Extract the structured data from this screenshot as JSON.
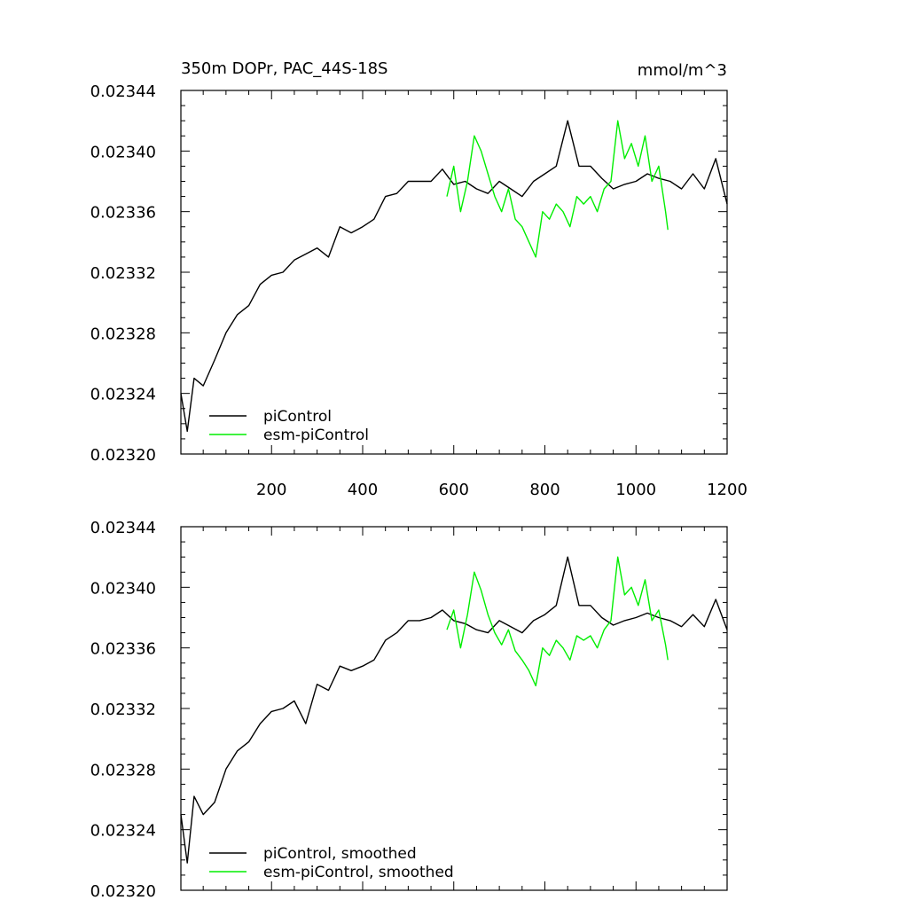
{
  "header": {
    "title": "350m DOPr, PAC_44S-18S",
    "units": "mmol/m^3"
  },
  "colors": {
    "piControl": "#000000",
    "esm_piControl": "#00ee00"
  },
  "chart_data": [
    {
      "type": "line",
      "panel": "raw",
      "title": "350m DOPr, PAC_44S-18S",
      "units": "mmol/m^3",
      "xlim": [
        1,
        1200
      ],
      "ylim": [
        0.0232,
        0.02344
      ],
      "x_ticks": [
        200,
        400,
        600,
        800,
        1000,
        1200
      ],
      "x_tick_labels": [
        "200",
        "400",
        "600",
        "800",
        "1000",
        "1200"
      ],
      "y_ticks": [
        0.0232,
        0.02324,
        0.02328,
        0.02332,
        0.02336,
        0.0234,
        0.02344
      ],
      "y_tick_labels": [
        "0.02320",
        "0.02324",
        "0.02328",
        "0.02332",
        "0.02336",
        "0.02340",
        "0.02344"
      ],
      "legend_position": "bottom-left",
      "series": [
        {
          "name": "piControl",
          "color": "#000000",
          "x": [
            1,
            15,
            30,
            50,
            75,
            100,
            125,
            150,
            175,
            200,
            225,
            250,
            275,
            300,
            325,
            350,
            375,
            400,
            425,
            450,
            475,
            500,
            525,
            550,
            575,
            600,
            625,
            650,
            675,
            700,
            725,
            750,
            775,
            800,
            825,
            850,
            875,
            900,
            925,
            950,
            975,
            1000,
            1025,
            1050,
            1075,
            1100,
            1125,
            1150,
            1175,
            1200
          ],
          "y": [
            0.02324,
            0.023215,
            0.02325,
            0.023245,
            0.023262,
            0.02328,
            0.023292,
            0.023298,
            0.023312,
            0.023318,
            0.02332,
            0.023328,
            0.023332,
            0.023336,
            0.02333,
            0.02335,
            0.023346,
            0.02335,
            0.023355,
            0.02337,
            0.023372,
            0.02338,
            0.02338,
            0.02338,
            0.023388,
            0.023378,
            0.02338,
            0.023375,
            0.023372,
            0.02338,
            0.023375,
            0.02337,
            0.02338,
            0.023385,
            0.02339,
            0.02342,
            0.02339,
            0.02339,
            0.023382,
            0.023375,
            0.023378,
            0.02338,
            0.023385,
            0.023382,
            0.02338,
            0.023375,
            0.023385,
            0.023375,
            0.023395,
            0.023365
          ]
        },
        {
          "name": "esm-piControl",
          "color": "#00ee00",
          "x": [
            585,
            600,
            615,
            630,
            645,
            660,
            675,
            690,
            705,
            720,
            735,
            750,
            765,
            780,
            795,
            810,
            825,
            840,
            855,
            870,
            885,
            900,
            915,
            930,
            945,
            960,
            975,
            990,
            1005,
            1020,
            1035,
            1050,
            1065,
            1070
          ],
          "y": [
            0.02337,
            0.02339,
            0.02336,
            0.02338,
            0.02341,
            0.0234,
            0.023385,
            0.02337,
            0.02336,
            0.023375,
            0.023355,
            0.02335,
            0.02334,
            0.02333,
            0.02336,
            0.023355,
            0.023365,
            0.02336,
            0.02335,
            0.02337,
            0.023365,
            0.02337,
            0.02336,
            0.023375,
            0.02338,
            0.02342,
            0.023395,
            0.023405,
            0.02339,
            0.02341,
            0.02338,
            0.02339,
            0.02336,
            0.023348
          ]
        }
      ]
    },
    {
      "type": "line",
      "panel": "smoothed",
      "xlim": [
        1,
        1200
      ],
      "ylim": [
        0.0232,
        0.02344
      ],
      "x_ticks": [
        200,
        400,
        600,
        800,
        1000,
        1200
      ],
      "y_ticks": [
        0.0232,
        0.02324,
        0.02328,
        0.02332,
        0.02336,
        0.0234,
        0.02344
      ],
      "y_tick_labels": [
        "0.02320",
        "0.02324",
        "0.02328",
        "0.02332",
        "0.02336",
        "0.02340",
        "0.02344"
      ],
      "legend_position": "bottom-left",
      "series": [
        {
          "name": "piControl, smoothed",
          "color": "#000000",
          "x": [
            1,
            15,
            30,
            50,
            75,
            100,
            125,
            150,
            175,
            200,
            225,
            250,
            275,
            300,
            325,
            350,
            375,
            400,
            425,
            450,
            475,
            500,
            525,
            550,
            575,
            600,
            625,
            650,
            675,
            700,
            725,
            750,
            775,
            800,
            825,
            850,
            875,
            900,
            925,
            950,
            975,
            1000,
            1025,
            1050,
            1075,
            1100,
            1125,
            1150,
            1175,
            1200
          ],
          "y": [
            0.02325,
            0.023218,
            0.023262,
            0.02325,
            0.023258,
            0.02328,
            0.023292,
            0.023298,
            0.02331,
            0.023318,
            0.02332,
            0.023325,
            0.02331,
            0.023336,
            0.023332,
            0.023348,
            0.023345,
            0.023348,
            0.023352,
            0.023365,
            0.02337,
            0.023378,
            0.023378,
            0.02338,
            0.023385,
            0.023378,
            0.023376,
            0.023372,
            0.02337,
            0.023378,
            0.023374,
            0.02337,
            0.023378,
            0.023382,
            0.023388,
            0.02342,
            0.023388,
            0.023388,
            0.02338,
            0.023375,
            0.023378,
            0.02338,
            0.023383,
            0.02338,
            0.023378,
            0.023374,
            0.023382,
            0.023374,
            0.023392,
            0.023372
          ]
        },
        {
          "name": "esm-piControl, smoothed",
          "color": "#00ee00",
          "x": [
            585,
            600,
            615,
            630,
            645,
            660,
            675,
            690,
            705,
            720,
            735,
            750,
            765,
            780,
            795,
            810,
            825,
            840,
            855,
            870,
            885,
            900,
            915,
            930,
            945,
            960,
            975,
            990,
            1005,
            1020,
            1035,
            1050,
            1065,
            1070
          ],
          "y": [
            0.023372,
            0.023385,
            0.02336,
            0.023382,
            0.02341,
            0.023398,
            0.023382,
            0.02337,
            0.023362,
            0.023372,
            0.023358,
            0.023352,
            0.023345,
            0.023335,
            0.02336,
            0.023355,
            0.023365,
            0.02336,
            0.023352,
            0.023368,
            0.023365,
            0.023368,
            0.02336,
            0.023372,
            0.023378,
            0.02342,
            0.023395,
            0.0234,
            0.023388,
            0.023405,
            0.023378,
            0.023385,
            0.023362,
            0.023352
          ]
        }
      ]
    }
  ]
}
